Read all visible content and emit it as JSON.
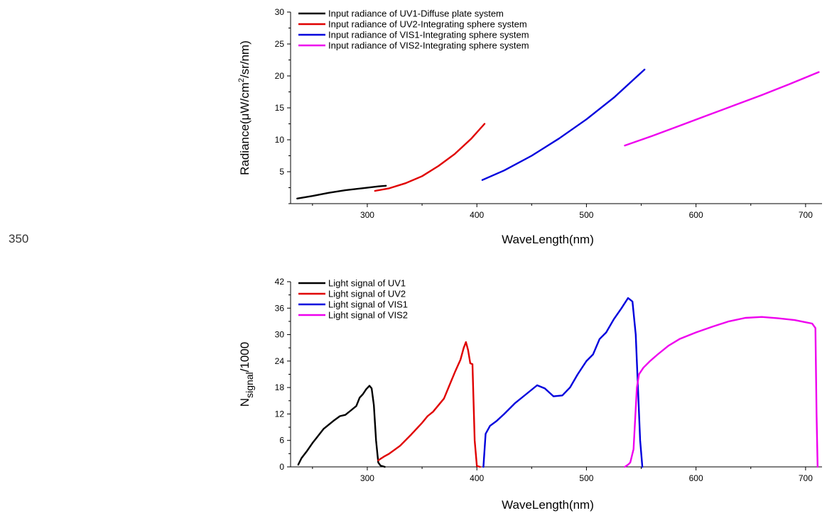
{
  "stray_label": "350",
  "chart_data": [
    {
      "type": "line",
      "xlabel": "WaveLength(nm)",
      "ylabel_parts": [
        "Radiance(",
        "μ",
        "W/cm",
        "2",
        "/sr/nm)"
      ],
      "xlim": [
        230,
        715
      ],
      "ylim": [
        0,
        30
      ],
      "xticks": [
        300,
        400,
        500,
        600,
        700
      ],
      "yticks": [
        5,
        10,
        15,
        20,
        25,
        30
      ],
      "legend_position": "top-left",
      "series": [
        {
          "name": "Input radiance of UV1-Diffuse plate system",
          "color": "#000000",
          "x": [
            236,
            250,
            265,
            280,
            295,
            310,
            317
          ],
          "y": [
            0.8,
            1.2,
            1.7,
            2.1,
            2.4,
            2.7,
            2.8
          ]
        },
        {
          "name": "Input radiance of UV2-Integrating sphere system",
          "color": "#e00000",
          "x": [
            307,
            320,
            335,
            350,
            365,
            380,
            395,
            407
          ],
          "y": [
            2.0,
            2.4,
            3.2,
            4.3,
            5.9,
            7.8,
            10.2,
            12.5
          ]
        },
        {
          "name": "Input radiance of VIS1-Integrating sphere system",
          "color": "#0000dd",
          "x": [
            405,
            425,
            450,
            475,
            500,
            525,
            553
          ],
          "y": [
            3.7,
            5.2,
            7.5,
            10.2,
            13.2,
            16.6,
            21.0
          ]
        },
        {
          "name": "Input radiance of VIS2-Integrating sphere system",
          "color": "#ee00ee",
          "x": [
            535,
            560,
            585,
            610,
            635,
            660,
            685,
            712
          ],
          "y": [
            9.1,
            10.6,
            12.2,
            13.8,
            15.4,
            17.0,
            18.7,
            20.6
          ]
        }
      ]
    },
    {
      "type": "line",
      "xlabel": "WaveLength(nm)",
      "ylabel_parts": [
        "N",
        "signal",
        "/1000"
      ],
      "xlim": [
        230,
        715
      ],
      "ylim": [
        0,
        42
      ],
      "xticks": [
        300,
        400,
        500,
        600,
        700
      ],
      "yticks": [
        0,
        6,
        12,
        18,
        24,
        30,
        36,
        42
      ],
      "legend_position": "top-left",
      "series": [
        {
          "name": "Light signal of UV1",
          "color": "#000000",
          "x": [
            237,
            240,
            245,
            250,
            255,
            260,
            265,
            270,
            275,
            280,
            285,
            290,
            293,
            296,
            299,
            302,
            304,
            306,
            308,
            310,
            312,
            316
          ],
          "y": [
            0.5,
            2.0,
            3.6,
            5.4,
            7.0,
            8.6,
            9.6,
            10.6,
            11.5,
            11.8,
            12.8,
            13.8,
            15.7,
            16.5,
            17.6,
            18.4,
            17.8,
            14.0,
            6.0,
            1.0,
            0.3,
            0.0
          ]
        },
        {
          "name": "Light signal of UV2",
          "color": "#e00000",
          "x": [
            310,
            315,
            320,
            330,
            340,
            350,
            355,
            360,
            370,
            375,
            380,
            385,
            388,
            390,
            392,
            394,
            396,
            398,
            400,
            403
          ],
          "y": [
            1.5,
            2.3,
            3.0,
            4.8,
            7.3,
            10.0,
            11.5,
            12.5,
            15.5,
            18.5,
            21.5,
            24.3,
            27.0,
            28.3,
            26.5,
            23.5,
            23.3,
            6.0,
            0.2,
            0.0
          ]
        },
        {
          "name": "Light signal of VIS1",
          "color": "#0000dd",
          "x": [
            406,
            408,
            412,
            418,
            425,
            435,
            445,
            455,
            462,
            470,
            478,
            485,
            492,
            500,
            506,
            512,
            518,
            525,
            532,
            538,
            542,
            545,
            547,
            549,
            551
          ],
          "y": [
            0.0,
            7.5,
            9.3,
            10.4,
            12.0,
            14.5,
            16.5,
            18.5,
            17.8,
            16.0,
            16.2,
            18.0,
            21.0,
            24.0,
            25.5,
            29.0,
            30.5,
            33.5,
            36.0,
            38.3,
            37.5,
            30.0,
            18.0,
            6.0,
            0.0
          ]
        },
        {
          "name": "Light signal of VIS2",
          "color": "#ee00ee",
          "x": [
            535,
            538,
            540,
            543,
            546,
            548,
            552,
            558,
            565,
            575,
            585,
            600,
            615,
            630,
            645,
            660,
            675,
            690,
            700,
            706,
            709,
            710,
            711
          ],
          "y": [
            0.0,
            0.5,
            1.0,
            4.0,
            18.0,
            21.0,
            22.5,
            24.0,
            25.5,
            27.5,
            29.0,
            30.5,
            31.8,
            33.0,
            33.8,
            34.0,
            33.7,
            33.3,
            32.8,
            32.5,
            31.5,
            12.0,
            0.0
          ]
        }
      ]
    }
  ]
}
